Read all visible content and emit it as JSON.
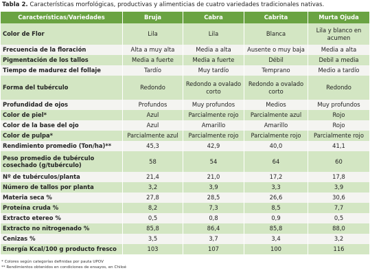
{
  "title": {
    "label": "Tabla 2.",
    "text": "Características morfológicas, productivas y alimenticias de cuatro variedades tradicionales nativas."
  },
  "table": {
    "header": [
      "Características/Variedades",
      "Bruja",
      "Cabra",
      "Cabrita",
      "Murta Ojuda"
    ],
    "rows": [
      [
        "Color de Flor",
        "Lila",
        "Lila",
        "Blanca",
        "Lila y blanco en acumen"
      ],
      [
        "Frecuencia de la floración",
        "Alta a muy alta",
        "Media a alta",
        "Ausente o muy baja",
        "Media a alta"
      ],
      [
        "Pigmentación de los tallos",
        "Media a fuerte",
        "Media a fuerte",
        "Débil",
        "Debil a media"
      ],
      [
        "Tiempo de madurez del follaje",
        "Tardío",
        "Muy tardío",
        "Temprano",
        "Medio a tardío"
      ],
      [
        "Forma del tubérculo",
        "Redondo",
        "Redondo a ovalado corto",
        "Redondo a ovalado corto",
        "Redondo"
      ],
      [
        "Profundidad de ojos",
        "Profundos",
        "Muy profundos",
        "Medios",
        "Muy profundos"
      ],
      [
        "Color de piel*",
        "Azul",
        "Parcialmente rojo",
        "Parcialmente azul",
        "Rojo"
      ],
      [
        "Color de la base del ojo",
        "Azul",
        "Amarillo",
        "Amarillo",
        "Rojo"
      ],
      [
        "Color de pulpa*",
        "Parcialmente azul",
        "Parcialmente rojo",
        "Parcialmente rojo",
        "Parcialmente rojo"
      ],
      [
        "Rendimiento promedio (Ton/ha)**",
        "45,3",
        "42,9",
        "40,0",
        "41,1"
      ],
      [
        "Peso promedio de tubérculo cosechado (g/tubérculo)",
        "58",
        "54",
        "64",
        "60"
      ],
      [
        "Nº de tubérculos/planta",
        "21,4",
        "21,0",
        "17,2",
        "17,8"
      ],
      [
        "Número de tallos por planta",
        "3,2",
        "3,9",
        "3,3",
        "3,9"
      ],
      [
        "Materia seca %",
        "27,8",
        "28,5",
        "26,6",
        "30,6"
      ],
      [
        "Proteína cruda %",
        "8,2",
        "7,3",
        "8,5",
        "7,7"
      ],
      [
        "Extracto etereo %",
        "0,5",
        "0,8",
        "0,9",
        "0,5"
      ],
      [
        "Extracto no nitrogenado %",
        "85,8",
        "86,4",
        "85,8",
        "88,0"
      ],
      [
        "Cenizas %",
        "3,5",
        "3,7",
        "3,4",
        "3,2"
      ],
      [
        "Energía Kcal/100 g producto fresco",
        "103",
        "107",
        "100",
        "116"
      ]
    ]
  },
  "footnotes": [
    "* Colores según categorías definidas por pauta UPOV",
    "** Rendimientos obtenidos en condiciones de ensayos, en Chiloé"
  ]
}
